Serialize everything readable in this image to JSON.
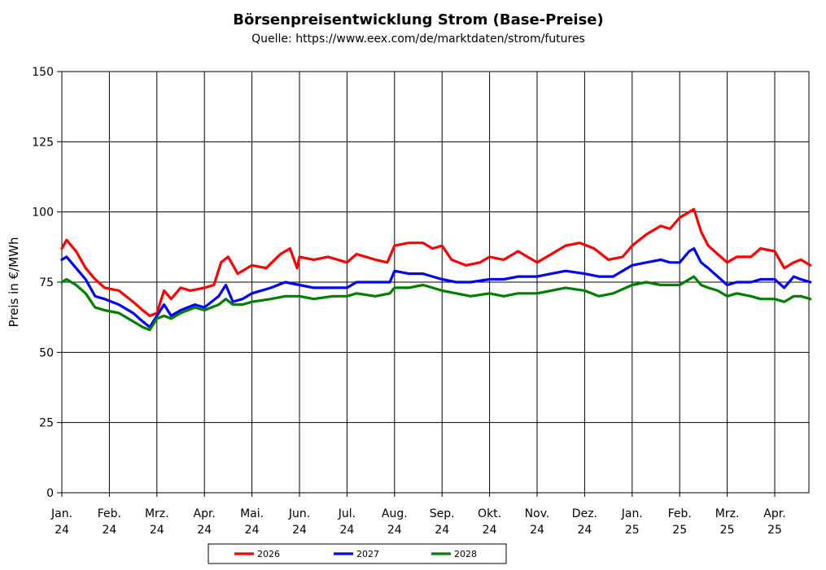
{
  "chart_data": {
    "type": "line",
    "title": "Börsenpreisentwicklung Strom (Base-Preise)",
    "subtitle": "Quelle:  https://www.eex.com/de/marktdaten/strom/futures",
    "ylabel": "Preis in €/MWh",
    "xlabel": "",
    "ylim": [
      0,
      150
    ],
    "yticks": [
      0,
      25,
      50,
      75,
      100,
      125,
      150
    ],
    "xlim": [
      0,
      15.75
    ],
    "grid": true,
    "legend_position": "bottom-center",
    "x_ticks": [
      {
        "x": 0,
        "label1": "Jan.",
        "label2": "24"
      },
      {
        "x": 1,
        "label1": "Feb.",
        "label2": "24"
      },
      {
        "x": 2,
        "label1": "Mrz.",
        "label2": "24"
      },
      {
        "x": 3,
        "label1": "Apr.",
        "label2": "24"
      },
      {
        "x": 4,
        "label1": "Mai.",
        "label2": "24"
      },
      {
        "x": 5,
        "label1": "Jun.",
        "label2": "24"
      },
      {
        "x": 6,
        "label1": "Jul.",
        "label2": "24"
      },
      {
        "x": 7,
        "label1": "Aug.",
        "label2": "24"
      },
      {
        "x": 8,
        "label1": "Sep.",
        "label2": "24"
      },
      {
        "x": 9,
        "label1": "Okt.",
        "label2": "24"
      },
      {
        "x": 10,
        "label1": "Nov.",
        "label2": "24"
      },
      {
        "x": 11,
        "label1": "Dez.",
        "label2": "24"
      },
      {
        "x": 12,
        "label1": "Jan.",
        "label2": "25"
      },
      {
        "x": 13,
        "label1": "Feb.",
        "label2": "25"
      },
      {
        "x": 14,
        "label1": "Mrz.",
        "label2": "25"
      },
      {
        "x": 15,
        "label1": "Apr.",
        "label2": "25"
      }
    ],
    "series": [
      {
        "name": "2026",
        "color": "#ff0000",
        "points": [
          [
            0,
            87
          ],
          [
            0.1,
            90
          ],
          [
            0.3,
            86
          ],
          [
            0.5,
            80
          ],
          [
            0.7,
            76
          ],
          [
            0.9,
            73
          ],
          [
            1.2,
            72
          ],
          [
            1.5,
            68
          ],
          [
            1.7,
            65
          ],
          [
            1.85,
            63
          ],
          [
            2.0,
            64
          ],
          [
            2.15,
            72
          ],
          [
            2.3,
            69
          ],
          [
            2.5,
            73
          ],
          [
            2.7,
            72
          ],
          [
            3.0,
            73
          ],
          [
            3.2,
            74
          ],
          [
            3.35,
            82
          ],
          [
            3.5,
            84
          ],
          [
            3.7,
            78
          ],
          [
            4.0,
            81
          ],
          [
            4.3,
            80
          ],
          [
            4.6,
            85
          ],
          [
            4.8,
            87
          ],
          [
            4.95,
            80
          ],
          [
            5.0,
            84
          ],
          [
            5.3,
            83
          ],
          [
            5.6,
            84
          ],
          [
            6.0,
            82
          ],
          [
            6.2,
            85
          ],
          [
            6.6,
            83
          ],
          [
            6.85,
            82
          ],
          [
            7.0,
            88
          ],
          [
            7.3,
            89
          ],
          [
            7.6,
            89
          ],
          [
            7.8,
            87
          ],
          [
            8.0,
            88
          ],
          [
            8.2,
            83
          ],
          [
            8.5,
            81
          ],
          [
            8.8,
            82
          ],
          [
            9.0,
            84
          ],
          [
            9.3,
            83
          ],
          [
            9.6,
            86
          ],
          [
            10.0,
            82
          ],
          [
            10.3,
            85
          ],
          [
            10.6,
            88
          ],
          [
            10.9,
            89
          ],
          [
            11.2,
            87
          ],
          [
            11.5,
            83
          ],
          [
            11.8,
            84
          ],
          [
            12.0,
            88
          ],
          [
            12.3,
            92
          ],
          [
            12.6,
            95
          ],
          [
            12.8,
            94
          ],
          [
            13.0,
            98
          ],
          [
            13.2,
            100
          ],
          [
            13.3,
            101
          ],
          [
            13.45,
            93
          ],
          [
            13.6,
            88
          ],
          [
            13.8,
            85
          ],
          [
            14.0,
            82
          ],
          [
            14.2,
            84
          ],
          [
            14.5,
            84
          ],
          [
            14.7,
            87
          ],
          [
            15.0,
            86
          ],
          [
            15.2,
            80
          ],
          [
            15.4,
            82
          ],
          [
            15.55,
            83
          ],
          [
            15.75,
            81
          ]
        ]
      },
      {
        "name": "2027",
        "color": "#0000ff",
        "points": [
          [
            0,
            83
          ],
          [
            0.1,
            84
          ],
          [
            0.3,
            80
          ],
          [
            0.5,
            76
          ],
          [
            0.7,
            70
          ],
          [
            0.9,
            69
          ],
          [
            1.2,
            67
          ],
          [
            1.5,
            64
          ],
          [
            1.7,
            61
          ],
          [
            1.85,
            59
          ],
          [
            2.0,
            63
          ],
          [
            2.15,
            67
          ],
          [
            2.3,
            63
          ],
          [
            2.5,
            65
          ],
          [
            2.8,
            67
          ],
          [
            3.0,
            66
          ],
          [
            3.3,
            70
          ],
          [
            3.45,
            74
          ],
          [
            3.6,
            68
          ],
          [
            3.8,
            69
          ],
          [
            4.0,
            71
          ],
          [
            4.4,
            73
          ],
          [
            4.7,
            75
          ],
          [
            5.0,
            74
          ],
          [
            5.3,
            73
          ],
          [
            5.7,
            73
          ],
          [
            6.0,
            73
          ],
          [
            6.2,
            75
          ],
          [
            6.6,
            75
          ],
          [
            6.9,
            75
          ],
          [
            7.0,
            79
          ],
          [
            7.3,
            78
          ],
          [
            7.6,
            78
          ],
          [
            7.8,
            77
          ],
          [
            8.0,
            76
          ],
          [
            8.3,
            75
          ],
          [
            8.6,
            75
          ],
          [
            9.0,
            76
          ],
          [
            9.3,
            76
          ],
          [
            9.6,
            77
          ],
          [
            10.0,
            77
          ],
          [
            10.3,
            78
          ],
          [
            10.6,
            79
          ],
          [
            11.0,
            78
          ],
          [
            11.3,
            77
          ],
          [
            11.6,
            77
          ],
          [
            12.0,
            81
          ],
          [
            12.3,
            82
          ],
          [
            12.6,
            83
          ],
          [
            12.8,
            82
          ],
          [
            13.0,
            82
          ],
          [
            13.2,
            86
          ],
          [
            13.3,
            87
          ],
          [
            13.45,
            82
          ],
          [
            13.6,
            80
          ],
          [
            13.8,
            77
          ],
          [
            14.0,
            74
          ],
          [
            14.2,
            75
          ],
          [
            14.5,
            75
          ],
          [
            14.7,
            76
          ],
          [
            15.0,
            76
          ],
          [
            15.2,
            73
          ],
          [
            15.4,
            77
          ],
          [
            15.55,
            76
          ],
          [
            15.75,
            75
          ]
        ]
      },
      {
        "name": "2028",
        "color": "#008000",
        "points": [
          [
            0,
            75
          ],
          [
            0.1,
            76
          ],
          [
            0.3,
            74
          ],
          [
            0.5,
            71
          ],
          [
            0.7,
            66
          ],
          [
            0.9,
            65
          ],
          [
            1.2,
            64
          ],
          [
            1.5,
            61
          ],
          [
            1.7,
            59
          ],
          [
            1.85,
            58
          ],
          [
            2.0,
            62
          ],
          [
            2.15,
            63
          ],
          [
            2.3,
            62
          ],
          [
            2.5,
            64
          ],
          [
            2.8,
            66
          ],
          [
            3.0,
            65
          ],
          [
            3.3,
            67
          ],
          [
            3.45,
            69
          ],
          [
            3.6,
            67
          ],
          [
            3.8,
            67
          ],
          [
            4.0,
            68
          ],
          [
            4.4,
            69
          ],
          [
            4.7,
            70
          ],
          [
            5.0,
            70
          ],
          [
            5.3,
            69
          ],
          [
            5.7,
            70
          ],
          [
            6.0,
            70
          ],
          [
            6.2,
            71
          ],
          [
            6.6,
            70
          ],
          [
            6.9,
            71
          ],
          [
            7.0,
            73
          ],
          [
            7.3,
            73
          ],
          [
            7.6,
            74
          ],
          [
            7.8,
            73
          ],
          [
            8.0,
            72
          ],
          [
            8.3,
            71
          ],
          [
            8.6,
            70
          ],
          [
            9.0,
            71
          ],
          [
            9.3,
            70
          ],
          [
            9.6,
            71
          ],
          [
            10.0,
            71
          ],
          [
            10.3,
            72
          ],
          [
            10.6,
            73
          ],
          [
            11.0,
            72
          ],
          [
            11.3,
            70
          ],
          [
            11.6,
            71
          ],
          [
            12.0,
            74
          ],
          [
            12.3,
            75
          ],
          [
            12.6,
            74
          ],
          [
            12.8,
            74
          ],
          [
            13.0,
            74
          ],
          [
            13.2,
            76
          ],
          [
            13.3,
            77
          ],
          [
            13.45,
            74
          ],
          [
            13.6,
            73
          ],
          [
            13.8,
            72
          ],
          [
            14.0,
            70
          ],
          [
            14.2,
            71
          ],
          [
            14.5,
            70
          ],
          [
            14.7,
            69
          ],
          [
            15.0,
            69
          ],
          [
            15.2,
            68
          ],
          [
            15.4,
            70
          ],
          [
            15.55,
            70
          ],
          [
            15.75,
            69
          ]
        ]
      }
    ]
  }
}
